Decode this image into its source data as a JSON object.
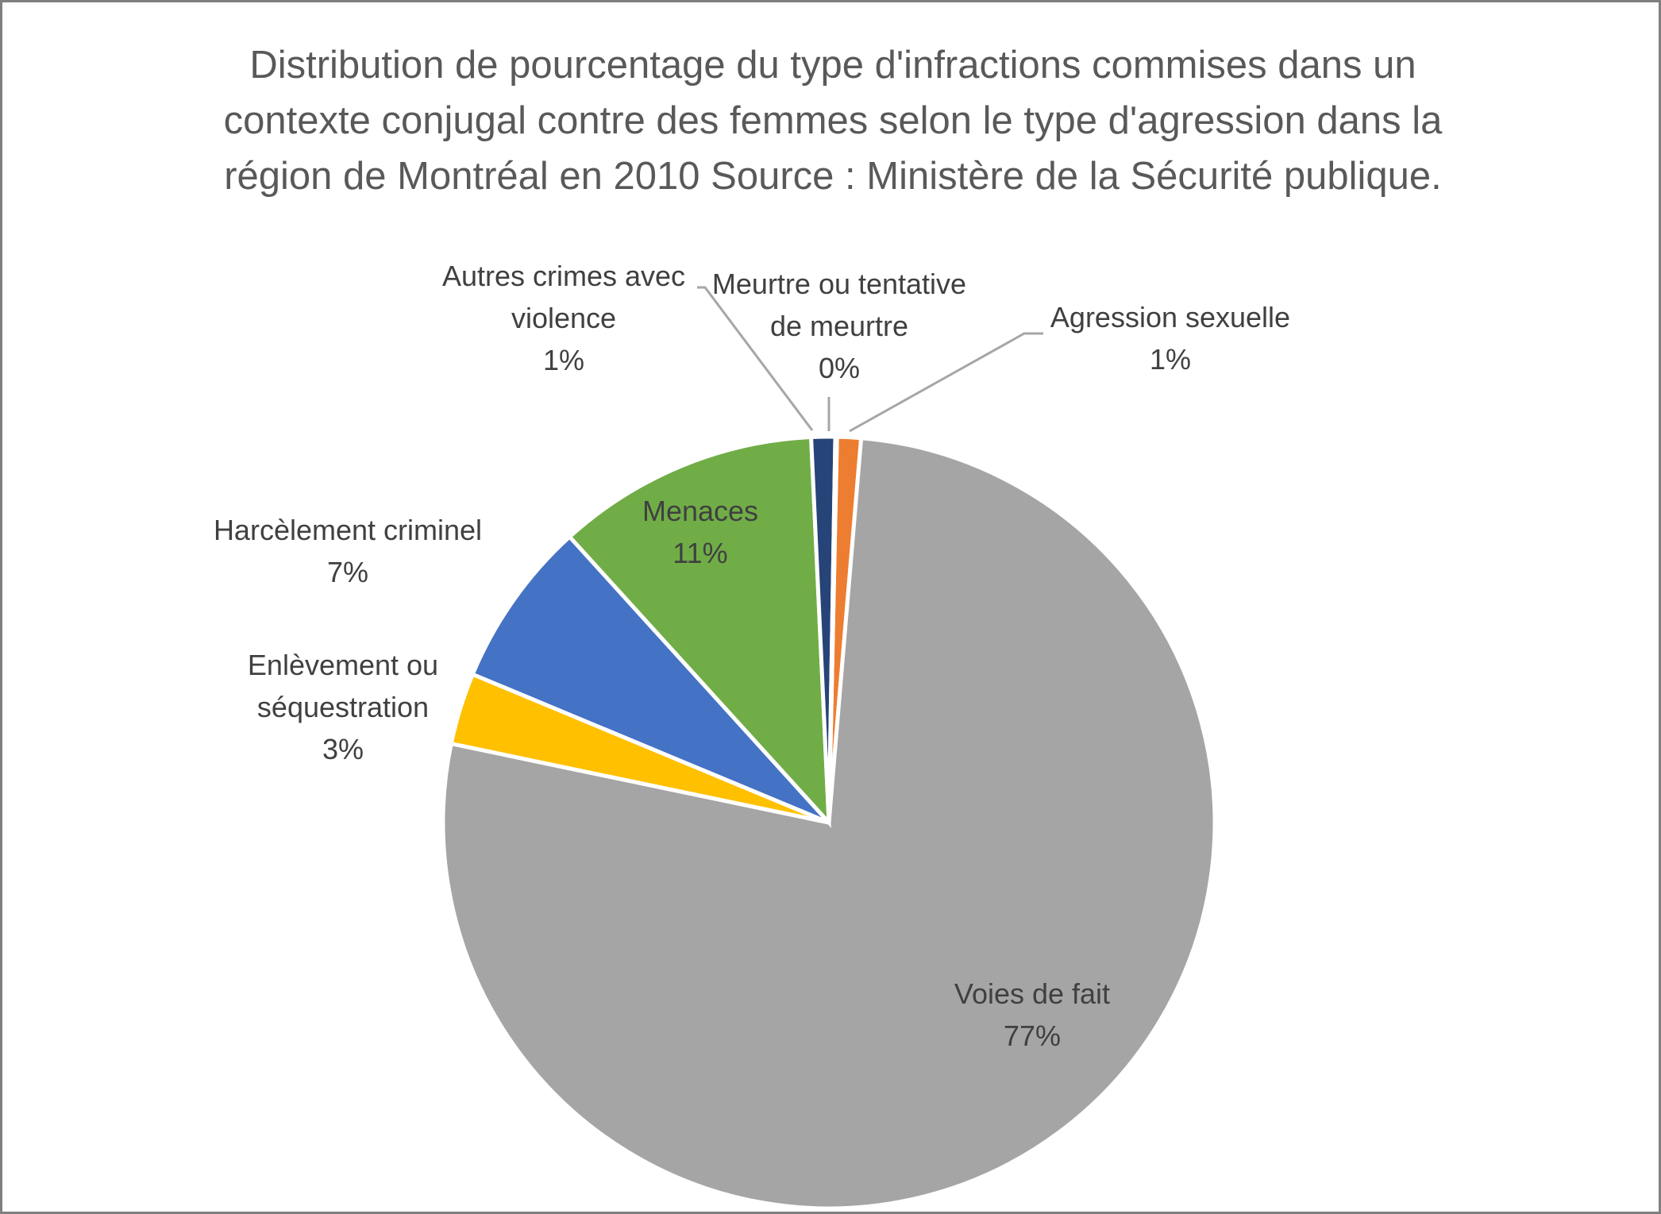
{
  "chart_data": {
    "type": "pie",
    "title": [
      "Distribution de pourcentage du type d'infractions commises dans un",
      "contexte conjugal contre des femmes selon le type d'agression dans la",
      "région de Montréal en 2010 Source : Ministère de la Sécurité publique."
    ],
    "start_angle_deg": 1.2,
    "slices": [
      {
        "name": "Agression sexuelle",
        "label_lines": [
          "Agression sexuelle"
        ],
        "value": 1,
        "display": "1%",
        "color": "#ED7D31"
      },
      {
        "name": "Voies de fait",
        "label_lines": [
          "Voies de fait"
        ],
        "value": 77,
        "display": "77%",
        "color": "#A5A5A5"
      },
      {
        "name": "Enlèvement ou séquestration",
        "label_lines": [
          "Enlèvement ou",
          "séquestration"
        ],
        "value": 3,
        "display": "3%",
        "color": "#FFC000"
      },
      {
        "name": "Harcèlement criminel",
        "label_lines": [
          "Harcèlement criminel"
        ],
        "value": 7,
        "display": "7%",
        "color": "#4472C4"
      },
      {
        "name": "Menaces",
        "label_lines": [
          "Menaces"
        ],
        "value": 11,
        "display": "11%",
        "color": "#70AD47"
      },
      {
        "name": "Autres crimes avec violence",
        "label_lines": [
          "Autres crimes avec",
          "violence"
        ],
        "value": 1,
        "display": "1%",
        "color": "#264478"
      },
      {
        "name": "Meurtre ou tentative de meurtre",
        "label_lines": [
          "Meurtre ou tentative",
          "de meurtre"
        ],
        "value": 0,
        "display": "0%",
        "color": "#9E480E"
      }
    ],
    "legend": "none"
  }
}
